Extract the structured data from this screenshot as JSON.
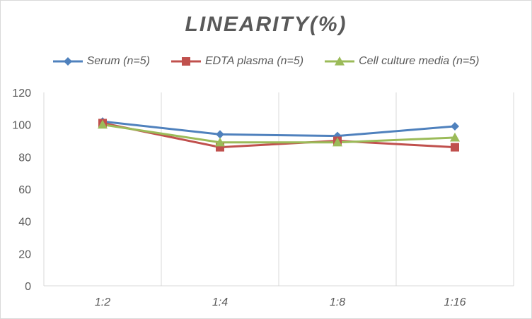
{
  "chart_data": {
    "type": "line",
    "title": "LINEARITY(%)",
    "categories": [
      "1:2",
      "1:4",
      "1:8",
      "1:16"
    ],
    "ylim": [
      0,
      120
    ],
    "yticks": [
      0,
      20,
      40,
      60,
      80,
      100,
      120
    ],
    "grid": "vertical",
    "legend_position": "top",
    "series": [
      {
        "name": "Serum (n=5)",
        "values": [
          102,
          94,
          93,
          99
        ],
        "color": "#4f81bd",
        "marker": "diamond"
      },
      {
        "name": "EDTA plasma (n=5)",
        "values": [
          101,
          86,
          90,
          86
        ],
        "color": "#c0504d",
        "marker": "square"
      },
      {
        "name": "Cell culture media (n=5)",
        "values": [
          100,
          89,
          89,
          92
        ],
        "color": "#9bbb59",
        "marker": "triangle"
      }
    ]
  }
}
